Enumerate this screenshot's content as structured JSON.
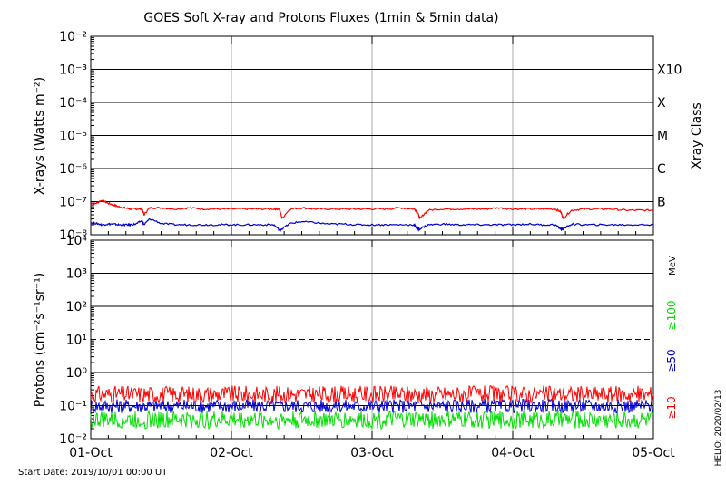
{
  "chart_data": [
    {
      "type": "line",
      "title": "GOES Soft X-ray and Protons Fluxes   (1min & 5min data)",
      "ylabel": "X-rays (Watts m⁻²)",
      "y_scale": "log",
      "ylim": [
        1e-08,
        0.01
      ],
      "y_ticks": [
        "10⁻⁸",
        "10⁻⁷",
        "10⁻⁶",
        "10⁻⁵",
        "10⁻⁴",
        "10⁻³",
        "10⁻²"
      ],
      "right_axis_label": "Xray Class",
      "class_labels": [
        "B",
        "C",
        "M",
        "X",
        "X10"
      ],
      "series": [
        {
          "color": "#ff0000",
          "x": [
            0,
            0.04,
            0.08,
            0.12,
            0.16,
            0.2,
            0.24,
            0.28,
            0.32,
            0.36,
            0.38,
            0.42,
            0.5,
            0.6,
            0.7,
            0.8,
            0.9,
            1.0,
            1.1,
            1.2,
            1.3,
            1.34,
            1.36,
            1.42,
            1.5,
            1.6,
            1.7,
            1.8,
            1.9,
            2.0,
            2.1,
            2.2,
            2.3,
            2.32,
            2.34,
            2.4,
            2.5,
            2.6,
            2.7,
            2.8,
            2.9,
            3.0,
            3.1,
            3.2,
            3.3,
            3.34,
            3.36,
            3.42,
            3.5,
            3.6,
            3.7,
            3.8,
            3.9,
            4.0
          ],
          "y": [
            8e-08,
            9e-08,
            1.1e-07,
            9e-08,
            8e-08,
            7e-08,
            6.5e-08,
            6e-08,
            6e-08,
            6e-08,
            4e-08,
            6.5e-08,
            6.5e-08,
            6e-08,
            6.5e-08,
            6e-08,
            6e-08,
            6e-08,
            6e-08,
            6e-08,
            6e-08,
            6e-08,
            3e-08,
            6e-08,
            6.5e-08,
            6e-08,
            6e-08,
            6e-08,
            6e-08,
            6e-08,
            6e-08,
            6.5e-08,
            6e-08,
            5e-08,
            3e-08,
            5.5e-08,
            6e-08,
            6e-08,
            6e-08,
            6e-08,
            6.5e-08,
            6e-08,
            6e-08,
            6e-08,
            6e-08,
            5e-08,
            3e-08,
            5.5e-08,
            6e-08,
            6e-08,
            6e-08,
            5.5e-08,
            5.5e-08,
            5.5e-08
          ]
        },
        {
          "color": "#0000cc",
          "x": [
            0,
            0.04,
            0.08,
            0.12,
            0.16,
            0.2,
            0.24,
            0.28,
            0.32,
            0.36,
            0.38,
            0.42,
            0.5,
            0.6,
            0.7,
            0.8,
            0.9,
            1.0,
            1.1,
            1.2,
            1.3,
            1.34,
            1.36,
            1.42,
            1.5,
            1.6,
            1.7,
            1.8,
            1.9,
            2.0,
            2.1,
            2.2,
            2.3,
            2.32,
            2.34,
            2.4,
            2.5,
            2.6,
            2.7,
            2.8,
            2.9,
            3.0,
            3.1,
            3.2,
            3.3,
            3.34,
            3.36,
            3.42,
            3.5,
            3.6,
            3.7,
            3.8,
            3.9,
            4.0
          ],
          "y": [
            2.3e-08,
            2.2e-08,
            2e-08,
            2.1e-08,
            2.1e-08,
            2e-08,
            2e-08,
            2e-08,
            2.1e-08,
            2.6e-08,
            2e-08,
            3e-08,
            2.2e-08,
            2e-08,
            2e-08,
            2e-08,
            2e-08,
            2e-08,
            2e-08,
            2e-08,
            2e-08,
            1.4e-08,
            1.5e-08,
            2.2e-08,
            2.5e-08,
            2.3e-08,
            2.1e-08,
            2.1e-08,
            2e-08,
            2e-08,
            2e-08,
            2e-08,
            2e-08,
            1.5e-08,
            1.5e-08,
            2e-08,
            2.1e-08,
            2e-08,
            2e-08,
            2e-08,
            2e-08,
            2e-08,
            2.1e-08,
            2e-08,
            2e-08,
            1.5e-08,
            1.5e-08,
            2.1e-08,
            2e-08,
            2e-08,
            2e-08,
            2e-08,
            2e-08,
            2e-08
          ]
        }
      ]
    },
    {
      "type": "line",
      "ylabel": "Protons (cm⁻²s⁻¹sr⁻¹)",
      "y_scale": "log",
      "ylim": [
        0.01,
        10000
      ],
      "y_ticks": [
        "10⁻²",
        "10⁻¹",
        "10⁰",
        "10¹",
        "10²",
        "10³",
        "10⁴"
      ],
      "threshold_line": 10,
      "right_unit": "MeV",
      "series": [
        {
          "name": "≥10",
          "color": "#ff0000",
          "y_range": [
            0.12,
            0.4
          ]
        },
        {
          "name": "≥50",
          "color": "#0000cc",
          "y_range": [
            0.06,
            0.16
          ]
        },
        {
          "name": "≥100",
          "color": "#00dd00",
          "y_range": [
            0.02,
            0.07
          ]
        }
      ]
    }
  ],
  "x_axis": {
    "ticks": [
      "01-Oct",
      "02-Oct",
      "03-Oct",
      "04-Oct",
      "05-Oct"
    ]
  },
  "footer": {
    "start_date": "Start Date: 2019/10/01 00:00 UT",
    "helio": "HELIO: 2020/02/13"
  }
}
